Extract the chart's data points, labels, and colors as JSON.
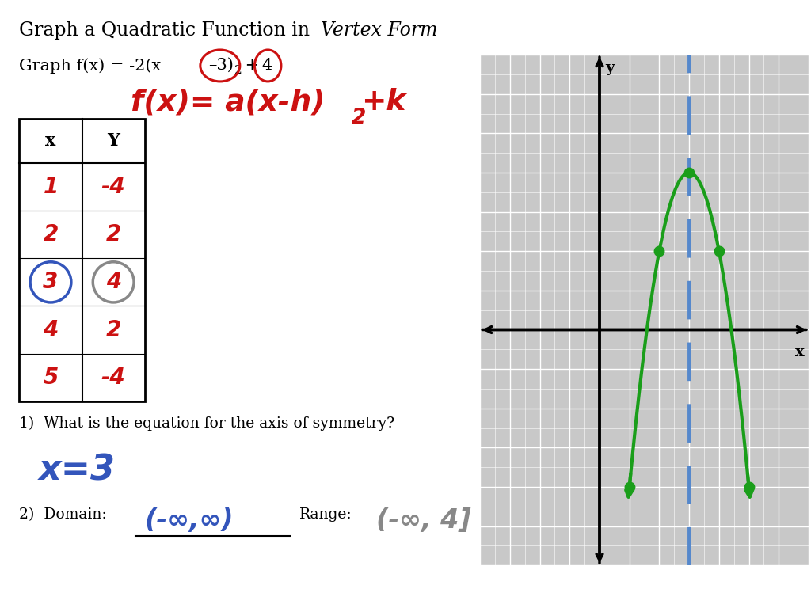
{
  "bg_color": "#ffffff",
  "parabola_color": "#1a9e1a",
  "dashed_color": "#5588cc",
  "dot_color": "#1a9e1a",
  "red_color": "#cc1111",
  "blue_color": "#3355bb",
  "gray_color": "#888888",
  "axis_xlim": [
    -4,
    7
  ],
  "axis_ylim": [
    -6,
    7
  ],
  "table_x_strs": [
    "1",
    "2",
    "3",
    "4",
    "5"
  ],
  "table_y_strs": [
    "-4",
    "2",
    "4",
    "2",
    "-4"
  ]
}
